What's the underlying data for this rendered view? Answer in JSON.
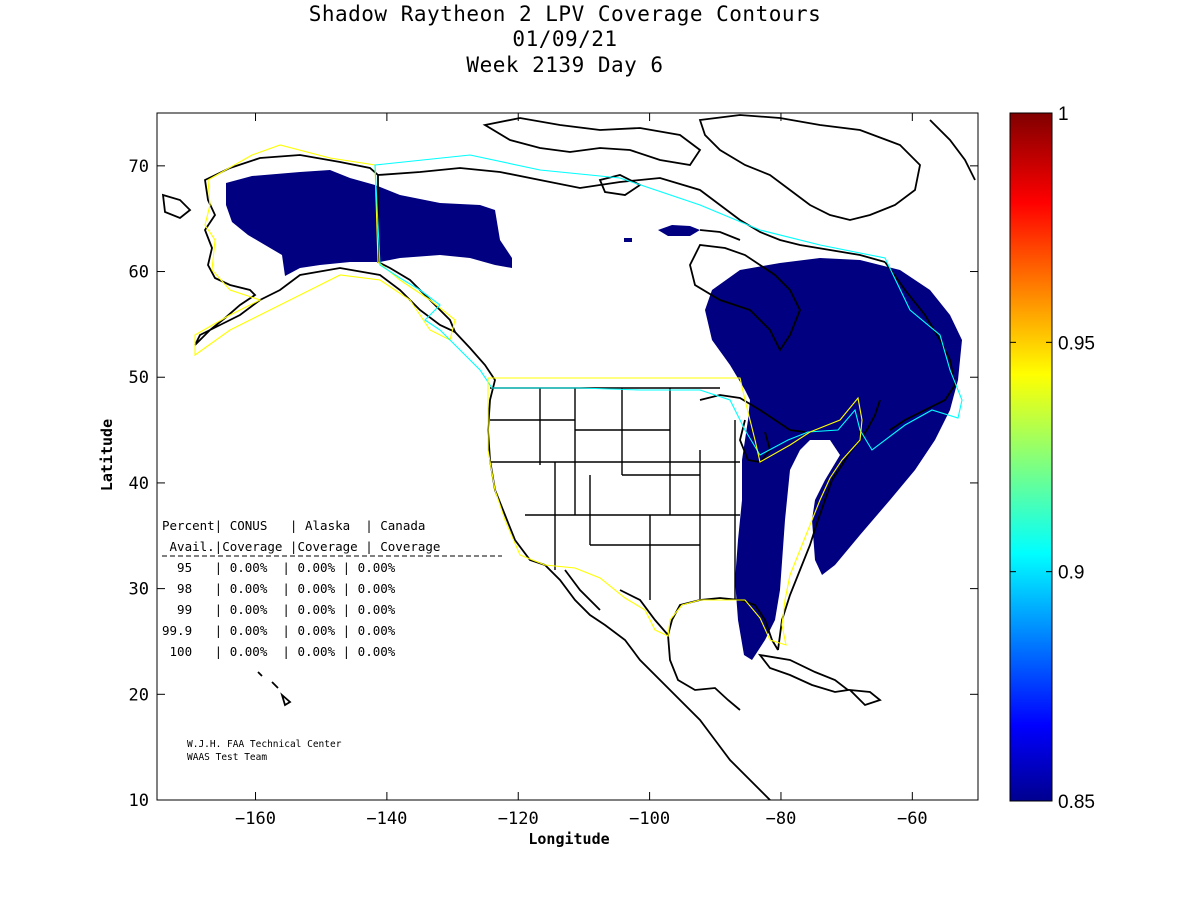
{
  "title": {
    "line1": "Shadow Raytheon 2 LPV Coverage Contours",
    "line2": "01/09/21",
    "line3": "Week 2139 Day 6"
  },
  "map": {
    "xlabel": "Longitude",
    "ylabel": "Latitude",
    "xlim": [
      -175,
      -50
    ],
    "ylim": [
      10,
      75
    ],
    "xticks": [
      -160,
      -140,
      -120,
      -100,
      -80,
      -60
    ],
    "yticks": [
      10,
      20,
      30,
      40,
      50,
      60,
      70
    ],
    "coverage_fill_color": "#000080",
    "boundary_colors": {
      "conus_alaska": "#ffff00",
      "canada": "#00ffff"
    }
  },
  "colorbar": {
    "min": 0.85,
    "max": 1,
    "tick_labels": [
      "1",
      "0.95",
      "0.9",
      "0.85"
    ],
    "colormap": "jet"
  },
  "stats_table": {
    "header1": "Percent| CONUS   | Alaska  | Canada",
    "header2": " Avail.|Coverage |Coverage | Coverage",
    "rows": [
      "  95   | 0.00%  | 0.00% | 0.00%",
      "  98   | 0.00%  | 0.00% | 0.00%",
      "  99   | 0.00%  | 0.00% | 0.00%",
      "99.9   | 0.00%  | 0.00% | 0.00%",
      " 100   | 0.00%  | 0.00% | 0.00%"
    ]
  },
  "credits": {
    "line1": "W.J.H. FAA Technical Center",
    "line2": "WAAS Test Team"
  }
}
